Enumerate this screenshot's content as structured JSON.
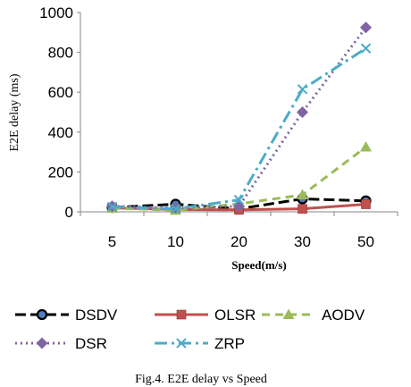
{
  "chart_data": {
    "type": "line",
    "categories": [
      "5",
      "10",
      "20",
      "30",
      "50"
    ],
    "xlabel": "Speed(m/s)",
    "ylabel": "E2E delay (ms)",
    "ylim": [
      0,
      1000
    ],
    "yticks": [
      "0",
      "200",
      "400",
      "600",
      "800",
      "1000"
    ],
    "grid": false,
    "legend_position": "bottom",
    "caption": "Fig.4. E2E delay vs Speed",
    "series": [
      {
        "name": "DSDV",
        "values": [
          22,
          38,
          15,
          65,
          55
        ],
        "color": "#000000",
        "marker": "circle",
        "dash": "long-dash"
      },
      {
        "name": "OLSR",
        "values": [
          20,
          12,
          10,
          15,
          38
        ],
        "color": "#c0504d",
        "marker": "square",
        "dash": "solid"
      },
      {
        "name": "AODV",
        "values": [
          18,
          8,
          40,
          85,
          325
        ],
        "color": "#9bbb59",
        "marker": "triangle",
        "dash": "dash"
      },
      {
        "name": "DSR",
        "values": [
          28,
          20,
          28,
          500,
          925
        ],
        "color": "#8064a2",
        "marker": "diamond",
        "dash": "dot"
      },
      {
        "name": "ZRP",
        "values": [
          25,
          15,
          60,
          615,
          820
        ],
        "color": "#4bacc6",
        "marker": "x",
        "dash": "dash-dot"
      }
    ]
  }
}
